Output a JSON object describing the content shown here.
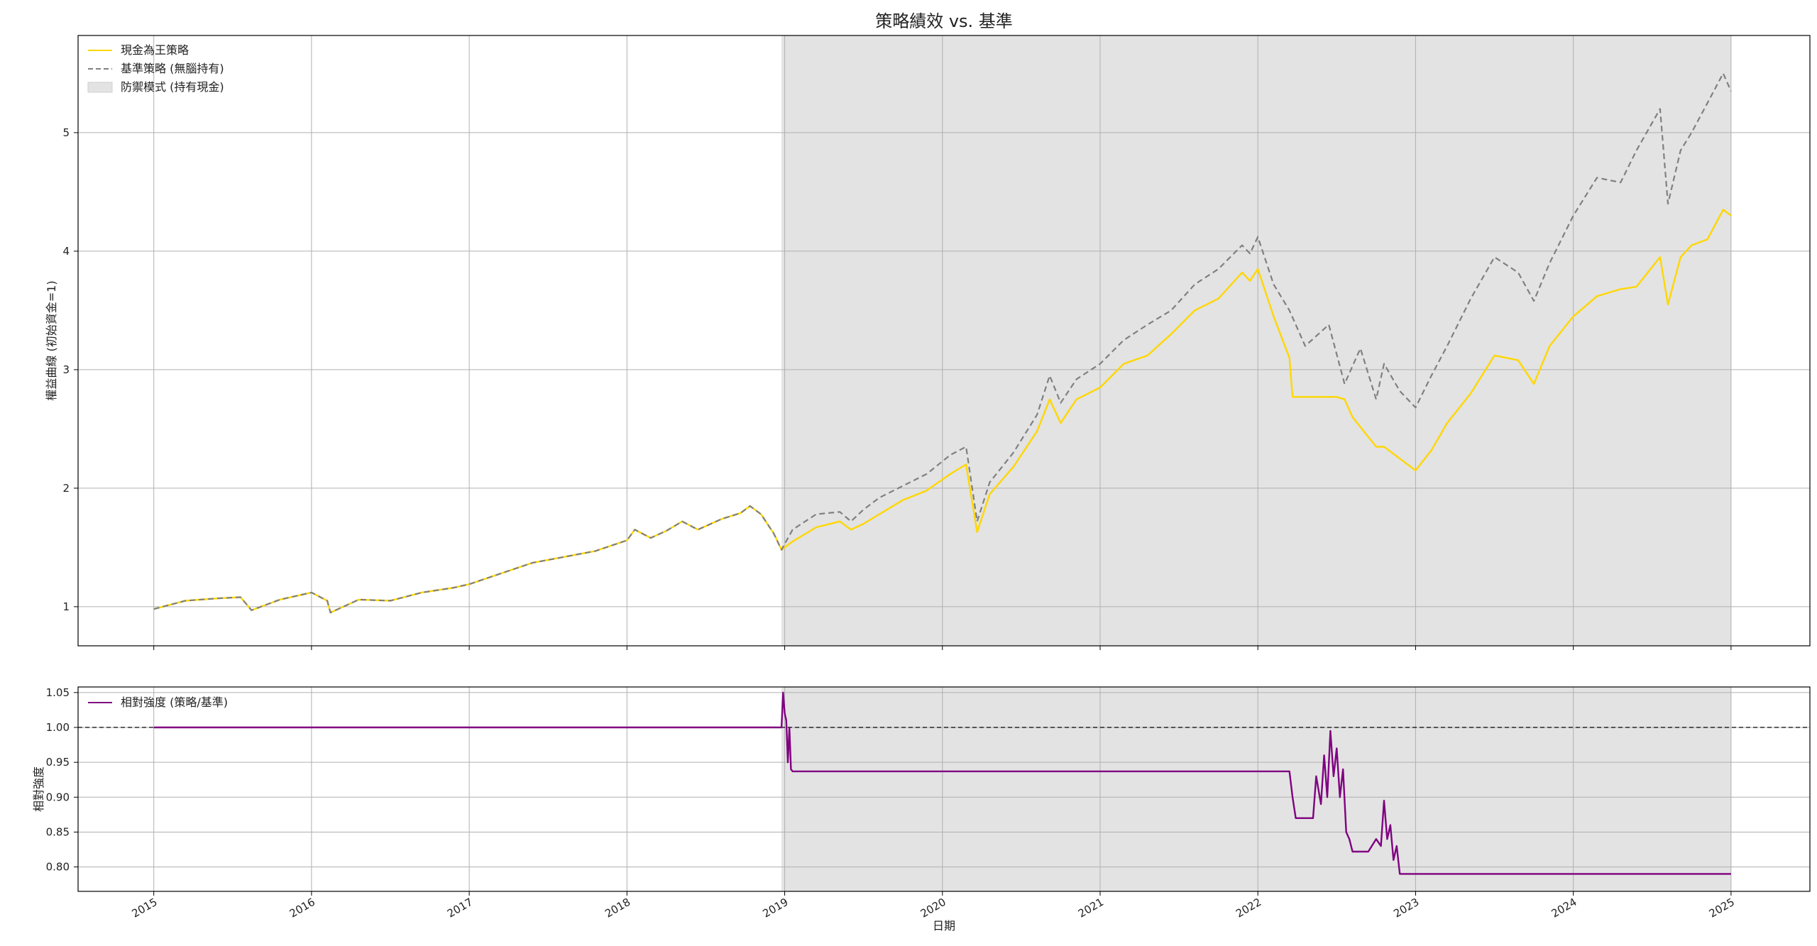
{
  "title": "策略績效 vs. 基準",
  "chart_data": [
    {
      "type": "line",
      "title": "策略績效 vs. 基準",
      "ylabel": "權益曲線 (初始資金=1)",
      "xlabel": "",
      "ylim": [
        0.67,
        5.82
      ],
      "yticks": [
        "1",
        "2",
        "3",
        "4",
        "5"
      ],
      "grid": true,
      "legend_position": "top-left",
      "legend": [
        {
          "label": "現金為王策略",
          "kind": "line"
        },
        {
          "label": "基準策略 (無腦持有)",
          "kind": "dashed"
        },
        {
          "label": "防禦模式 (持有現金)",
          "kind": "patch"
        }
      ],
      "shaded_region": {
        "from": 2018.98,
        "to": 2025.0,
        "label": "防禦模式 (持有現金)"
      },
      "series": [
        {
          "name": "基準策略 (無腦持有)",
          "style": "dashed",
          "color": "#808080",
          "x": [
            2015.0,
            2015.2,
            2015.4,
            2015.55,
            2015.62,
            2015.8,
            2016.0,
            2016.1,
            2016.12,
            2016.3,
            2016.5,
            2016.7,
            2016.9,
            2017.0,
            2017.2,
            2017.4,
            2017.6,
            2017.8,
            2018.0,
            2018.05,
            2018.15,
            2018.25,
            2018.35,
            2018.45,
            2018.6,
            2018.72,
            2018.78,
            2018.85,
            2018.93,
            2018.98,
            2019.05,
            2019.2,
            2019.35,
            2019.42,
            2019.5,
            2019.6,
            2019.75,
            2019.9,
            2020.05,
            2020.15,
            2020.22,
            2020.3,
            2020.45,
            2020.6,
            2020.68,
            2020.75,
            2020.85,
            2021.0,
            2021.15,
            2021.3,
            2021.45,
            2021.6,
            2021.75,
            2021.9,
            2021.95,
            2022.0,
            2022.1,
            2022.2,
            2022.3,
            2022.45,
            2022.55,
            2022.65,
            2022.75,
            2022.8,
            2022.9,
            2023.0,
            2023.1,
            2023.2,
            2023.35,
            2023.5,
            2023.65,
            2023.75,
            2023.85,
            2024.0,
            2024.15,
            2024.3,
            2024.4,
            2024.55,
            2024.6,
            2024.68,
            2024.75,
            2024.85,
            2024.95,
            2025.0
          ],
          "y": [
            0.98,
            1.05,
            1.07,
            1.08,
            0.97,
            1.06,
            1.12,
            1.05,
            0.95,
            1.06,
            1.05,
            1.12,
            1.16,
            1.19,
            1.28,
            1.37,
            1.42,
            1.47,
            1.56,
            1.65,
            1.58,
            1.64,
            1.72,
            1.65,
            1.74,
            1.79,
            1.85,
            1.78,
            1.62,
            1.48,
            1.65,
            1.78,
            1.8,
            1.72,
            1.82,
            1.92,
            2.02,
            2.12,
            2.28,
            2.35,
            1.72,
            2.05,
            2.3,
            2.62,
            2.95,
            2.72,
            2.92,
            3.05,
            3.25,
            3.38,
            3.5,
            3.72,
            3.85,
            4.05,
            3.98,
            4.12,
            3.72,
            3.5,
            3.2,
            3.38,
            2.88,
            3.18,
            2.75,
            3.05,
            2.82,
            2.68,
            2.95,
            3.2,
            3.6,
            3.95,
            3.82,
            3.58,
            3.9,
            4.3,
            4.62,
            4.58,
            4.85,
            5.2,
            4.4,
            4.85,
            5.0,
            5.25,
            5.5,
            5.35
          ]
        },
        {
          "name": "現金為王策略",
          "style": "solid",
          "color": "#FFD700",
          "x": [
            2015.0,
            2015.2,
            2015.4,
            2015.55,
            2015.62,
            2015.8,
            2016.0,
            2016.1,
            2016.12,
            2016.3,
            2016.5,
            2016.7,
            2016.9,
            2017.0,
            2017.2,
            2017.4,
            2017.6,
            2017.8,
            2018.0,
            2018.05,
            2018.15,
            2018.25,
            2018.35,
            2018.45,
            2018.6,
            2018.72,
            2018.78,
            2018.85,
            2018.93,
            2018.98,
            2019.05,
            2019.2,
            2019.35,
            2019.42,
            2019.5,
            2019.6,
            2019.75,
            2019.9,
            2020.05,
            2020.15,
            2020.22,
            2020.3,
            2020.45,
            2020.6,
            2020.68,
            2020.75,
            2020.85,
            2021.0,
            2021.15,
            2021.3,
            2021.45,
            2021.6,
            2021.75,
            2021.9,
            2021.95,
            2022.0,
            2022.1,
            2022.2,
            2022.22,
            2022.5,
            2022.55,
            2022.6,
            2022.75,
            2022.8,
            2023.0,
            2023.1,
            2023.2,
            2023.35,
            2023.5,
            2023.65,
            2023.75,
            2023.85,
            2024.0,
            2024.15,
            2024.3,
            2024.4,
            2024.55,
            2024.6,
            2024.68,
            2024.75,
            2024.85,
            2024.95,
            2025.0
          ],
          "y": [
            0.98,
            1.05,
            1.07,
            1.08,
            0.97,
            1.06,
            1.12,
            1.05,
            0.95,
            1.06,
            1.05,
            1.12,
            1.16,
            1.19,
            1.28,
            1.37,
            1.42,
            1.47,
            1.56,
            1.65,
            1.58,
            1.64,
            1.72,
            1.65,
            1.74,
            1.79,
            1.85,
            1.78,
            1.62,
            1.48,
            1.55,
            1.67,
            1.72,
            1.65,
            1.7,
            1.78,
            1.9,
            1.98,
            2.12,
            2.2,
            1.63,
            1.95,
            2.18,
            2.48,
            2.75,
            2.55,
            2.75,
            2.85,
            3.05,
            3.12,
            3.3,
            3.5,
            3.6,
            3.82,
            3.75,
            3.85,
            3.45,
            3.1,
            2.77,
            2.77,
            2.75,
            2.6,
            2.35,
            2.35,
            2.15,
            2.32,
            2.55,
            2.8,
            3.12,
            3.08,
            2.88,
            3.2,
            3.45,
            3.62,
            3.68,
            3.7,
            3.95,
            3.55,
            3.95,
            4.05,
            4.1,
            4.35,
            4.3
          ]
        }
      ]
    },
    {
      "type": "line",
      "ylabel": "相對強度",
      "xlabel": "日期",
      "ylim": [
        0.765,
        1.058
      ],
      "yticks": [
        "0.80",
        "0.85",
        "0.90",
        "0.95",
        "1.00",
        "1.05"
      ],
      "xticks": [
        "2015",
        "2016",
        "2017",
        "2018",
        "2019",
        "2020",
        "2021",
        "2022",
        "2023",
        "2024",
        "2025"
      ],
      "grid": true,
      "legend_position": "top-left",
      "reference_line": 1.0,
      "shaded_region": {
        "from": 2018.98,
        "to": 2025.0
      },
      "series": [
        {
          "name": "相對強度 (策略/基準)",
          "color": "#800080",
          "x": [
            2015.0,
            2018.98,
            2018.99,
            2019.0,
            2019.01,
            2019.02,
            2019.03,
            2019.04,
            2019.05,
            2022.2,
            2022.22,
            2022.24,
            2022.35,
            2022.37,
            2022.4,
            2022.42,
            2022.44,
            2022.46,
            2022.48,
            2022.5,
            2022.52,
            2022.54,
            2022.56,
            2022.58,
            2022.6,
            2022.62,
            2022.65,
            2022.7,
            2022.75,
            2022.78,
            2022.8,
            2022.82,
            2022.84,
            2022.86,
            2022.88,
            2022.9,
            2022.93,
            2025.0
          ],
          "y": [
            1.0,
            1.0,
            1.05,
            1.02,
            1.01,
            0.95,
            1.0,
            0.94,
            0.937,
            0.937,
            0.9,
            0.87,
            0.87,
            0.93,
            0.89,
            0.96,
            0.9,
            0.995,
            0.93,
            0.97,
            0.9,
            0.94,
            0.85,
            0.84,
            0.822,
            0.822,
            0.822,
            0.822,
            0.84,
            0.83,
            0.895,
            0.84,
            0.86,
            0.81,
            0.83,
            0.79,
            0.79,
            0.79
          ]
        }
      ]
    }
  ]
}
